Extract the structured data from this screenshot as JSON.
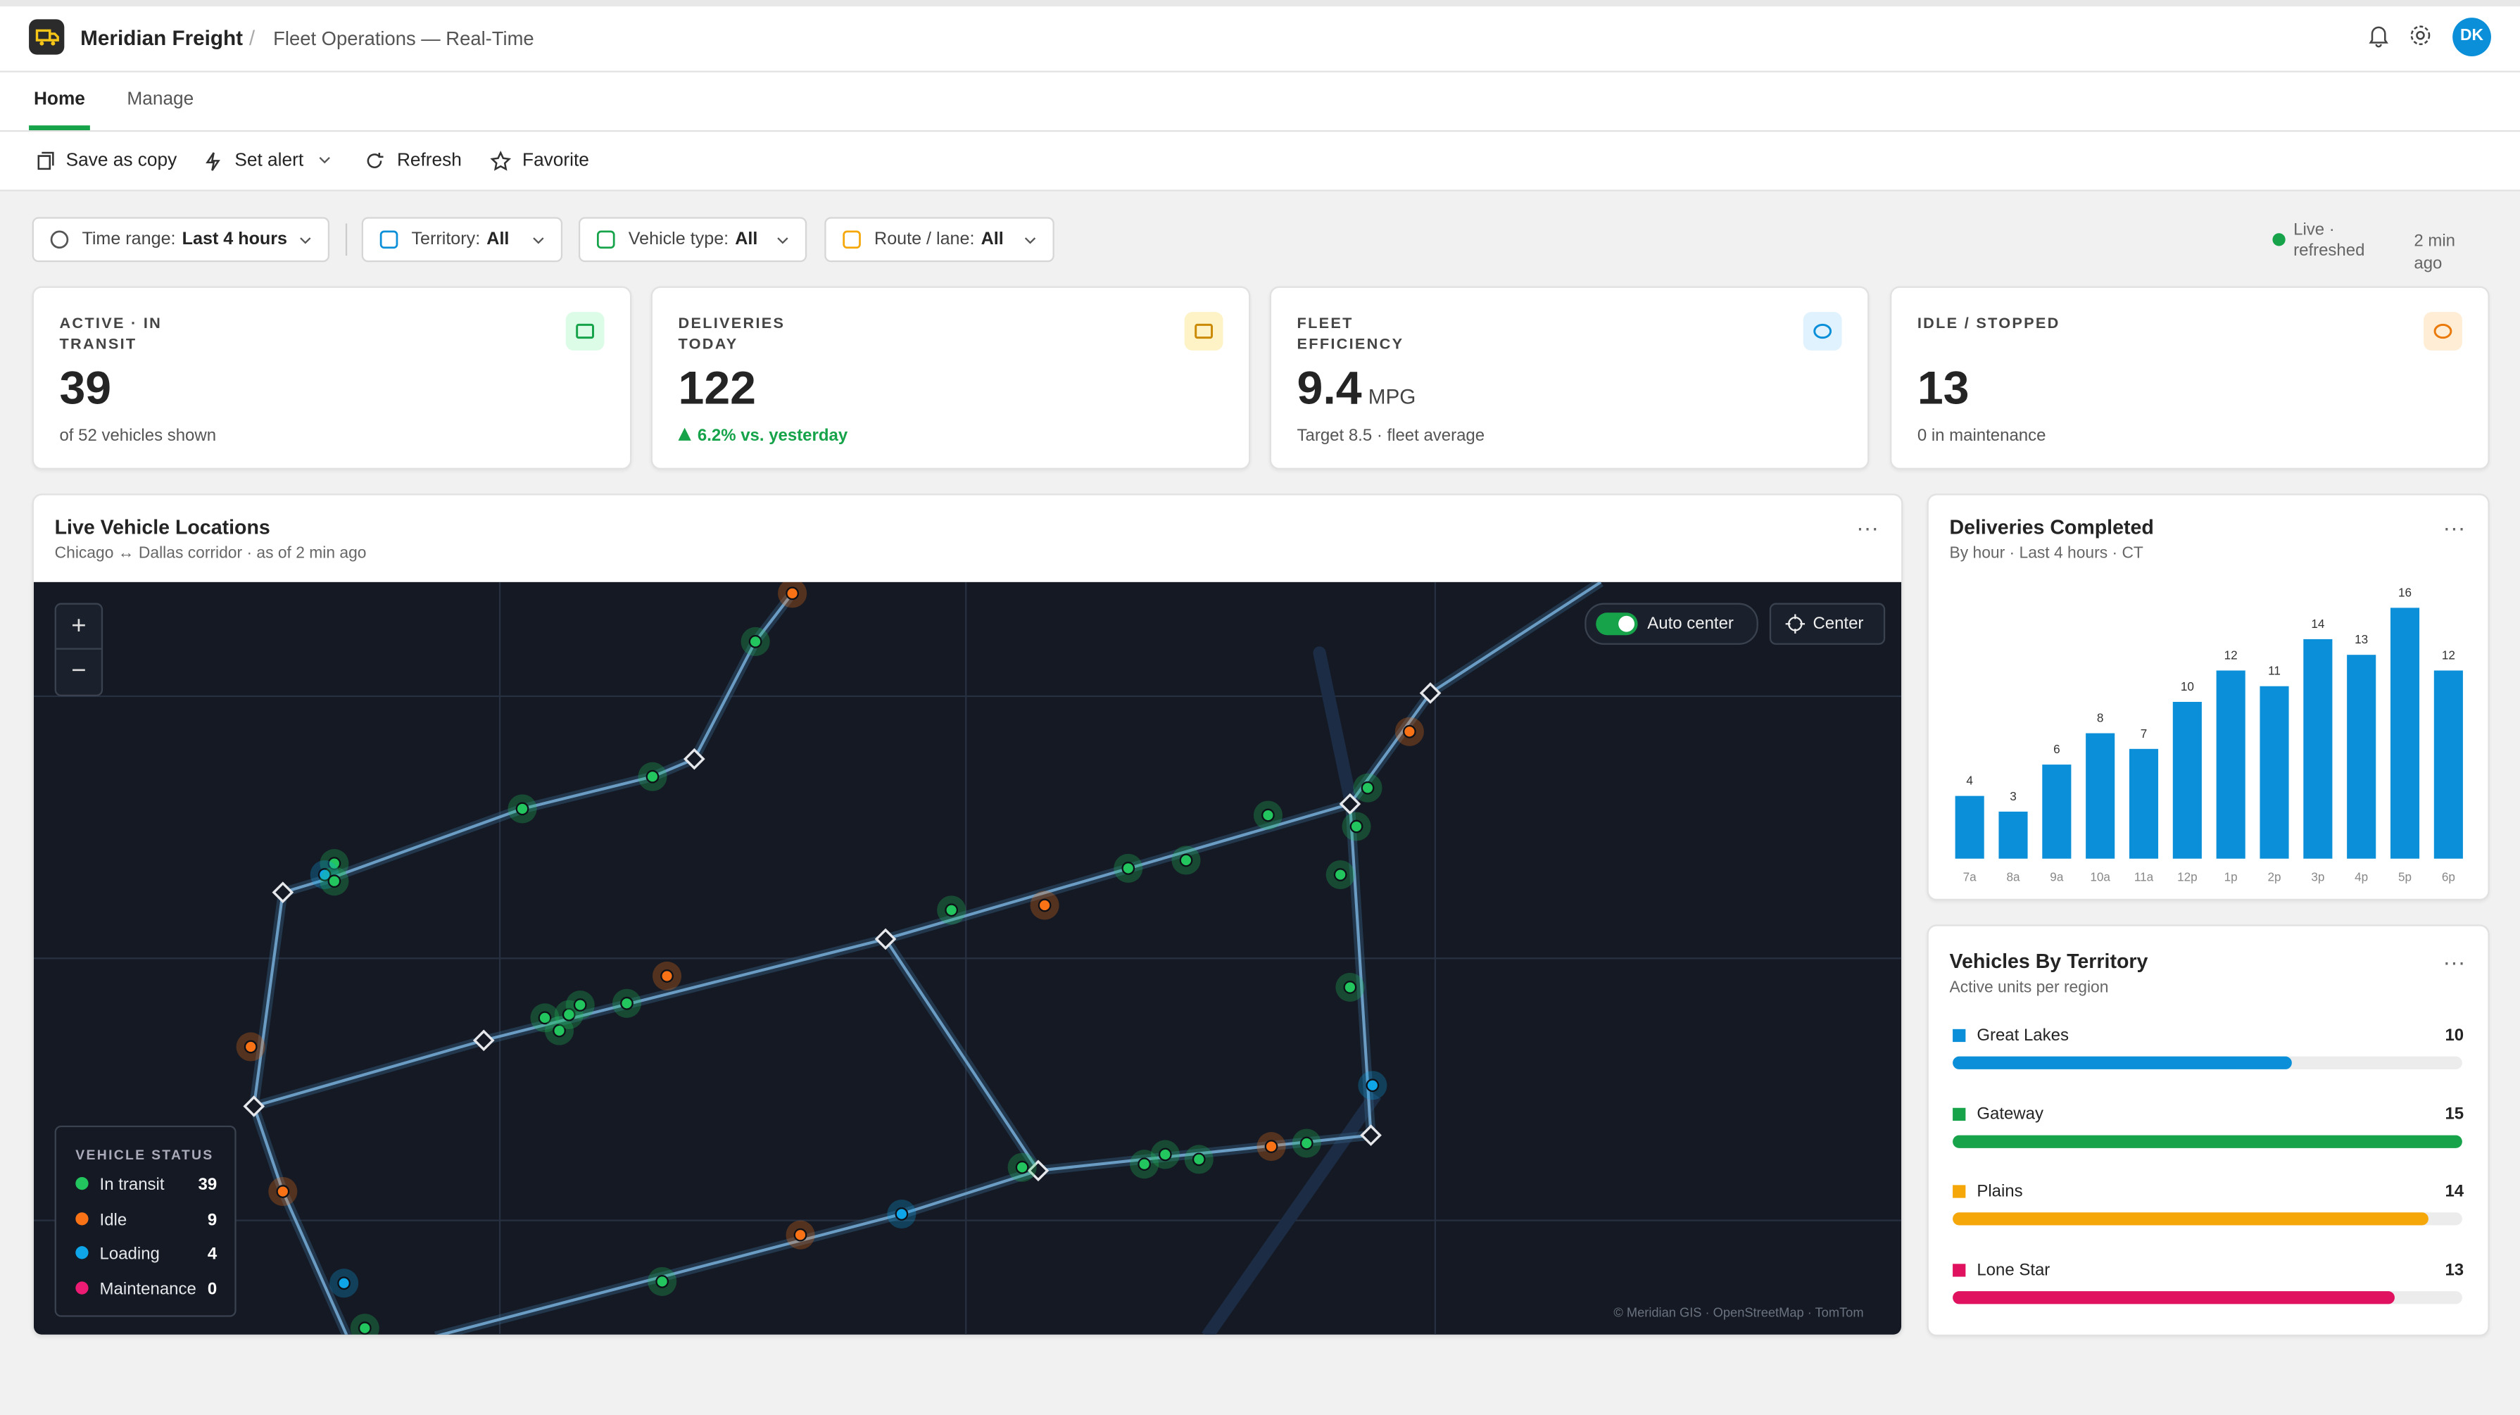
{
  "app": {
    "name": "Meridian Freight",
    "page": "Fleet Operations — Real-Time",
    "avatar": "DK"
  },
  "tabs": [
    "Home",
    "Manage"
  ],
  "toolbar": [
    "Save as copy",
    "Set alert",
    "Refresh",
    "Favorite"
  ],
  "filters": [
    {
      "label": "Time range:",
      "value": "Last 4 hours"
    },
    {
      "label": "Territory:",
      "value": "All"
    },
    {
      "label": "Vehicle type:",
      "value": "All"
    },
    {
      "label": "Route / lane:",
      "value": "All"
    }
  ],
  "status": {
    "live": "Live · refreshed",
    "age": "2 min ago"
  },
  "kpis": [
    {
      "title": "ACTIVE · IN TRANSIT",
      "value": 39,
      "note": "of 52 vehicles shown"
    },
    {
      "title": "DELIVERIES TODAY",
      "value": 122,
      "note": "6.2% vs. yesterday"
    },
    {
      "title": "FLEET EFFICIENCY",
      "value": 9.4,
      "unit": "MPG",
      "note": "Target 8.5 · fleet average"
    },
    {
      "title": "IDLE / STOPPED",
      "value": 13,
      "note": "0 in maintenance"
    }
  ],
  "map": {
    "title": "Live Vehicle Locations",
    "subtitle": "Chicago ↔ Dallas corridor · as of 2 min ago",
    "auto_center": "Auto center",
    "center": "Center",
    "attribution": "© Meridian GIS · OpenStreetMap · TomTom",
    "legend": {
      "title": "VEHICLE STATUS",
      "items": [
        {
          "name": "In transit",
          "count": 39,
          "color": "#22c55e"
        },
        {
          "name": "Idle",
          "count": 9,
          "color": "#f97316"
        },
        {
          "name": "Loading",
          "count": 4,
          "color": "#0ea5e9"
        },
        {
          "name": "Maintenance",
          "count": 0,
          "color": "#ec1c74"
        }
      ]
    }
  },
  "deliveries": {
    "title": "Deliveries Completed",
    "subtitle": "By hour · Last 4 hours · CT",
    "color": "#0a8fd8",
    "categories": [
      "7a",
      "8a",
      "9a",
      "10a",
      "11a",
      "12p",
      "1p",
      "2p",
      "3p",
      "4p",
      "5p",
      "6p"
    ],
    "values": [
      4,
      3,
      6,
      8,
      7,
      10,
      12,
      11,
      14,
      13,
      16,
      12
    ]
  },
  "territory": {
    "title": "Vehicles By Territory",
    "subtitle": "Active units per region",
    "items": [
      {
        "name": "Great Lakes",
        "value": 10,
        "color": "#0a8fd8"
      },
      {
        "name": "Gateway",
        "value": 15,
        "color": "#16a34a"
      },
      {
        "name": "Plains",
        "value": 14,
        "color": "#f5a70a"
      },
      {
        "name": "Lone Star",
        "value": 13,
        "color": "#e0115f"
      }
    ]
  }
}
